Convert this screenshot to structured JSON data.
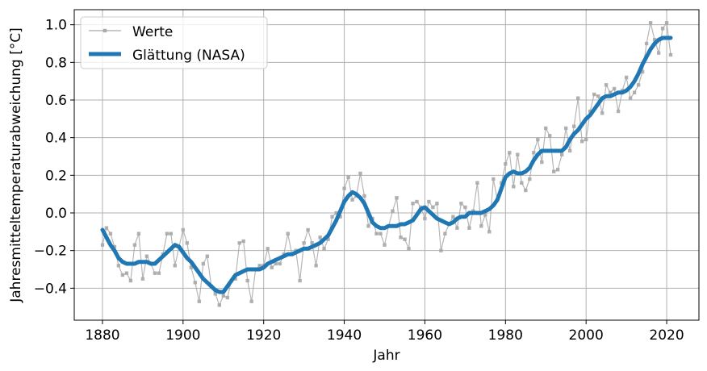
{
  "chart_data": {
    "type": "line",
    "xlabel": "Jahr",
    "ylabel": "Jahresmitteltemperaturabweichung [°C]",
    "xlim": [
      1873,
      2028
    ],
    "ylim": [
      -0.57,
      1.08
    ],
    "xticks": [
      "1880",
      "1900",
      "1920",
      "1940",
      "1960",
      "1980",
      "2000",
      "2020"
    ],
    "yticks": [
      "−0.4",
      "−0.2",
      "0.0",
      "0.2",
      "0.4",
      "0.6",
      "0.8",
      "1.0"
    ],
    "grid": true,
    "legend_position": "top-left",
    "series": [
      {
        "name": "Werte",
        "color": "#a9a9a9",
        "style": "thin line with square markers",
        "x": [
          1880,
          1881,
          1882,
          1883,
          1884,
          1885,
          1886,
          1887,
          1888,
          1889,
          1890,
          1891,
          1892,
          1893,
          1894,
          1895,
          1896,
          1897,
          1898,
          1899,
          1900,
          1901,
          1902,
          1903,
          1904,
          1905,
          1906,
          1907,
          1908,
          1909,
          1910,
          1911,
          1912,
          1913,
          1914,
          1915,
          1916,
          1917,
          1918,
          1919,
          1920,
          1921,
          1922,
          1923,
          1924,
          1925,
          1926,
          1927,
          1928,
          1929,
          1930,
          1931,
          1932,
          1933,
          1934,
          1935,
          1936,
          1937,
          1938,
          1939,
          1940,
          1941,
          1942,
          1943,
          1944,
          1945,
          1946,
          1947,
          1948,
          1949,
          1950,
          1951,
          1952,
          1953,
          1954,
          1955,
          1956,
          1957,
          1958,
          1959,
          1960,
          1961,
          1962,
          1963,
          1964,
          1965,
          1966,
          1967,
          1968,
          1969,
          1970,
          1971,
          1972,
          1973,
          1974,
          1975,
          1976,
          1977,
          1978,
          1979,
          1980,
          1981,
          1982,
          1983,
          1984,
          1985,
          1986,
          1987,
          1988,
          1989,
          1990,
          1991,
          1992,
          1993,
          1994,
          1995,
          1996,
          1997,
          1998,
          1999,
          2000,
          2001,
          2002,
          2003,
          2004,
          2005,
          2006,
          2007,
          2008,
          2009,
          2010,
          2011,
          2012,
          2013,
          2014,
          2015,
          2016,
          2017,
          2018,
          2019,
          2020,
          2021
        ],
        "values": [
          -0.17,
          -0.08,
          -0.11,
          -0.18,
          -0.28,
          -0.33,
          -0.32,
          -0.36,
          -0.17,
          -0.11,
          -0.35,
          -0.23,
          -0.27,
          -0.32,
          -0.32,
          -0.22,
          -0.11,
          -0.11,
          -0.28,
          -0.18,
          -0.09,
          -0.16,
          -0.29,
          -0.37,
          -0.47,
          -0.27,
          -0.23,
          -0.39,
          -0.43,
          -0.49,
          -0.44,
          -0.45,
          -0.36,
          -0.35,
          -0.16,
          -0.15,
          -0.36,
          -0.47,
          -0.3,
          -0.28,
          -0.28,
          -0.19,
          -0.29,
          -0.27,
          -0.27,
          -0.22,
          -0.11,
          -0.22,
          -0.2,
          -0.36,
          -0.16,
          -0.09,
          -0.16,
          -0.28,
          -0.13,
          -0.19,
          -0.14,
          -0.02,
          -0.0,
          -0.02,
          0.13,
          0.19,
          0.07,
          0.09,
          0.21,
          0.09,
          -0.07,
          -0.03,
          -0.11,
          -0.11,
          -0.17,
          -0.07,
          0.01,
          0.08,
          -0.13,
          -0.14,
          -0.19,
          0.05,
          0.06,
          0.03,
          -0.03,
          0.06,
          0.03,
          0.05,
          -0.2,
          -0.11,
          -0.06,
          -0.02,
          -0.08,
          0.05,
          0.03,
          -0.08,
          0.01,
          0.16,
          -0.07,
          -0.01,
          -0.1,
          0.18,
          0.07,
          0.16,
          0.26,
          0.32,
          0.14,
          0.31,
          0.16,
          0.12,
          0.18,
          0.32,
          0.39,
          0.27,
          0.45,
          0.41,
          0.22,
          0.23,
          0.31,
          0.45,
          0.33,
          0.46,
          0.61,
          0.38,
          0.39,
          0.54,
          0.63,
          0.62,
          0.53,
          0.68,
          0.64,
          0.66,
          0.54,
          0.65,
          0.72,
          0.61,
          0.64,
          0.68,
          0.75,
          0.9,
          1.01,
          0.92,
          0.85,
          0.98,
          1.01,
          0.84
        ]
      },
      {
        "name": "Glättung (NASA)",
        "color": "#1f77b4",
        "style": "thick line",
        "x": [
          1880,
          1881,
          1882,
          1883,
          1884,
          1885,
          1886,
          1887,
          1888,
          1889,
          1890,
          1891,
          1892,
          1893,
          1894,
          1895,
          1896,
          1897,
          1898,
          1899,
          1900,
          1901,
          1902,
          1903,
          1904,
          1905,
          1906,
          1907,
          1908,
          1909,
          1910,
          1911,
          1912,
          1913,
          1914,
          1915,
          1916,
          1917,
          1918,
          1919,
          1920,
          1921,
          1922,
          1923,
          1924,
          1925,
          1926,
          1927,
          1928,
          1929,
          1930,
          1931,
          1932,
          1933,
          1934,
          1935,
          1936,
          1937,
          1938,
          1939,
          1940,
          1941,
          1942,
          1943,
          1944,
          1945,
          1946,
          1947,
          1948,
          1949,
          1950,
          1951,
          1952,
          1953,
          1954,
          1955,
          1956,
          1957,
          1958,
          1959,
          1960,
          1961,
          1962,
          1963,
          1964,
          1965,
          1966,
          1967,
          1968,
          1969,
          1970,
          1971,
          1972,
          1973,
          1974,
          1975,
          1976,
          1977,
          1978,
          1979,
          1980,
          1981,
          1982,
          1983,
          1984,
          1985,
          1986,
          1987,
          1988,
          1989,
          1990,
          1991,
          1992,
          1993,
          1994,
          1995,
          1996,
          1997,
          1998,
          1999,
          2000,
          2001,
          2002,
          2003,
          2004,
          2005,
          2006,
          2007,
          2008,
          2009,
          2010,
          2011,
          2012,
          2013,
          2014,
          2015,
          2016,
          2017,
          2018,
          2019,
          2020,
          2021
        ],
        "values": [
          -0.09,
          -0.13,
          -0.17,
          -0.2,
          -0.24,
          -0.26,
          -0.27,
          -0.27,
          -0.27,
          -0.26,
          -0.26,
          -0.26,
          -0.27,
          -0.27,
          -0.25,
          -0.23,
          -0.21,
          -0.19,
          -0.17,
          -0.18,
          -0.21,
          -0.24,
          -0.26,
          -0.29,
          -0.32,
          -0.35,
          -0.37,
          -0.39,
          -0.41,
          -0.42,
          -0.42,
          -0.39,
          -0.36,
          -0.33,
          -0.32,
          -0.31,
          -0.3,
          -0.3,
          -0.3,
          -0.3,
          -0.29,
          -0.27,
          -0.26,
          -0.25,
          -0.24,
          -0.23,
          -0.22,
          -0.22,
          -0.21,
          -0.2,
          -0.19,
          -0.19,
          -0.18,
          -0.17,
          -0.16,
          -0.14,
          -0.12,
          -0.08,
          -0.04,
          0.01,
          0.06,
          0.09,
          0.11,
          0.1,
          0.08,
          0.05,
          0.0,
          -0.05,
          -0.07,
          -0.08,
          -0.08,
          -0.07,
          -0.07,
          -0.07,
          -0.06,
          -0.06,
          -0.05,
          -0.04,
          -0.01,
          0.02,
          0.03,
          0.01,
          -0.01,
          -0.03,
          -0.04,
          -0.05,
          -0.06,
          -0.05,
          -0.03,
          -0.02,
          -0.02,
          0.0,
          0.0,
          0.0,
          0.0,
          0.01,
          0.02,
          0.04,
          0.07,
          0.13,
          0.19,
          0.21,
          0.22,
          0.21,
          0.21,
          0.22,
          0.24,
          0.28,
          0.31,
          0.33,
          0.33,
          0.33,
          0.33,
          0.33,
          0.33,
          0.35,
          0.39,
          0.42,
          0.44,
          0.47,
          0.5,
          0.52,
          0.55,
          0.58,
          0.61,
          0.62,
          0.62,
          0.63,
          0.64,
          0.64,
          0.65,
          0.67,
          0.7,
          0.74,
          0.79,
          0.83,
          0.87,
          0.9,
          0.92,
          0.93,
          0.93,
          0.93
        ]
      }
    ]
  }
}
